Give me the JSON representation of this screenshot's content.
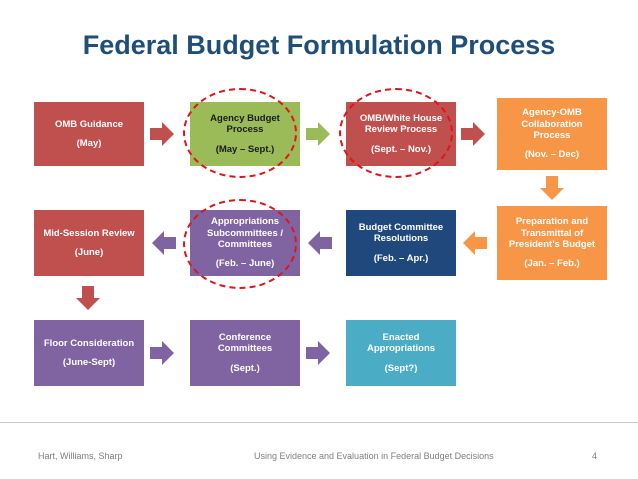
{
  "title": "Federal Budget Formulation Process",
  "boxes": {
    "omb_guidance": {
      "label": "OMB Guidance",
      "date": "(May)"
    },
    "agency_budget": {
      "label": "Agency Budget Process",
      "date": "(May – Sept.)"
    },
    "omb_white_house": {
      "label": "OMB/White House Review Process",
      "date": "(Sept. – Nov.)"
    },
    "agency_omb": {
      "label": "Agency-OMB Collaboration Process",
      "date": "(Nov. – Dec)"
    },
    "preparation": {
      "label": "Preparation and Transmittal of President’s Budget",
      "date": "(Jan. – Feb.)"
    },
    "budget_committee": {
      "label": "Budget Committee Resolutions",
      "date": "(Feb. – Apr.)"
    },
    "appropriations": {
      "label": "Appropriations Subcommittees / Committees",
      "date": "(Feb. – June)"
    },
    "mid_session": {
      "label": "Mid-Session Review",
      "date": "(June)"
    },
    "floor": {
      "label": "Floor Consideration",
      "date": "(June-Sept)"
    },
    "conference": {
      "label": "Conference Committees",
      "date": "(Sept.)"
    },
    "enacted": {
      "label": "Enacted Appropriations",
      "date": "(Sept?)"
    }
  },
  "footer": {
    "authors": "Hart, Williams,  Sharp",
    "center": "Using Evidence and Evaluation in Federal Budget Decisions",
    "page": "4"
  },
  "colors": {
    "title": "#1f4e79",
    "red": "#c0504d",
    "green": "#9bbb59",
    "purple": "#8064a2",
    "navy": "#1f497d",
    "orange": "#f79646",
    "teal": "#4bacc6",
    "highlight": "#e0141a"
  }
}
